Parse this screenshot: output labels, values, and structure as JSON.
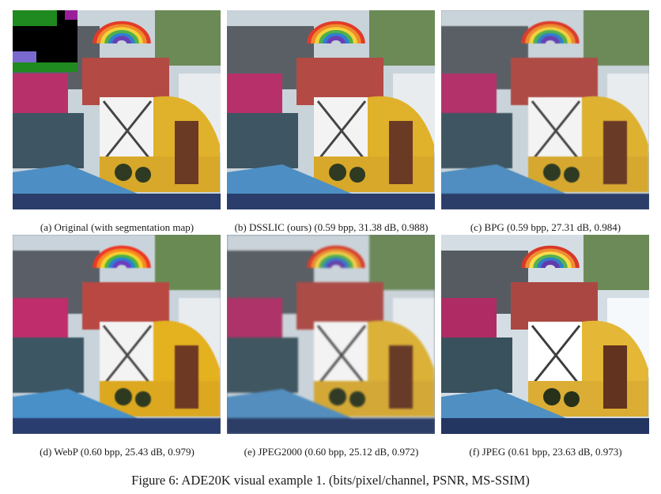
{
  "figure": {
    "caption": "Figure 6: ADE20K visual example 1. (bits/pixel/channel, PSNR, MS-SSIM)"
  },
  "panels": [
    {
      "caption": "(a) Original (with segmentation map)",
      "variant": "original",
      "has_segmentation_inset": true
    },
    {
      "caption": "(b) DSSLIC (ours) (0.59 bpp, 31.38 dB, 0.988)",
      "variant": "dsslic"
    },
    {
      "caption": "(c) BPG (0.59 bpp, 27.31 dB, 0.984)",
      "variant": "bpg"
    },
    {
      "caption": "(d) WebP (0.60 bpp, 25.43 dB, 0.979)",
      "variant": "webp"
    },
    {
      "caption": "(e) JPEG2000 (0.60 bpp, 25.12 dB, 0.972)",
      "variant": "jpeg2000"
    },
    {
      "caption": "(f) JPEG (0.61 bpp, 23.63 dB, 0.973)",
      "variant": "jpeg"
    }
  ],
  "colors": {
    "sky": "#c9d3da",
    "rainbow": [
      "#e23b2a",
      "#f08a2b",
      "#f4d23a",
      "#4fb04a",
      "#2f7fd1",
      "#6a3fb5"
    ],
    "yellow_panel": "#e0b12a",
    "blue_roof": "#4d8fc4",
    "magenta_awning": "#b8306a",
    "segmentation": [
      "#1f8a1f",
      "#000000",
      "#9a1e9a",
      "#7a6ad0"
    ]
  }
}
